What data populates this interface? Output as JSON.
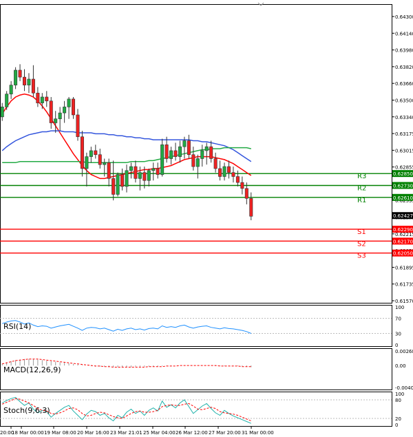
{
  "chart_data": {
    "type": "candlestick",
    "symbol_pair_quote_precision": 5,
    "x_labels": [
      "20:00",
      "18 Mar 00:00",
      "19 Mar 08:00",
      "20 Mar 16:00",
      "23 Mar 21:01",
      "25 Mar 04:00",
      "26 Mar 12:00",
      "27 Mar 20:00",
      "31 Mar 00:00"
    ],
    "price_axis": {
      "ylim": [
        0.6157,
        0.6443
      ],
      "ticks": [
        "0.64300",
        "0.64140",
        "0.63980",
        "0.63820",
        "0.63660",
        "0.63500",
        "0.63340",
        "0.63175",
        "0.63015",
        "0.62855",
        "0.62695",
        "0.62535",
        "0.62375",
        "0.62215",
        "0.62055",
        "0.61895",
        "0.61735",
        "0.61570"
      ],
      "current_price": "0.62427"
    },
    "levels": [
      {
        "name": "R3",
        "value": 0.6285,
        "label": "0.62850",
        "color": "#008000"
      },
      {
        "name": "R2",
        "value": 0.6273,
        "label": "0.62730",
        "color": "#008000"
      },
      {
        "name": "R1",
        "value": 0.6261,
        "label": "0.62610",
        "color": "#008000"
      },
      {
        "name": "S1",
        "value": 0.6229,
        "label": "0.62290",
        "color": "#ff0000"
      },
      {
        "name": "S2",
        "value": 0.6217,
        "label": "0.62170",
        "color": "#ff0000"
      },
      {
        "name": "S3",
        "value": 0.6205,
        "label": "0.62050",
        "color": "#ff0000"
      }
    ],
    "candles": [
      [
        0.6342,
        0.6356,
        0.6338,
        0.6352
      ],
      [
        0.6352,
        0.6368,
        0.6349,
        0.6365
      ],
      [
        0.6365,
        0.6378,
        0.636,
        0.6374
      ],
      [
        0.6374,
        0.6392,
        0.637,
        0.6389
      ],
      [
        0.6389,
        0.6395,
        0.6378,
        0.6382
      ],
      [
        0.6382,
        0.639,
        0.6368,
        0.6374
      ],
      [
        0.6374,
        0.6386,
        0.6366,
        0.638
      ],
      [
        0.638,
        0.6394,
        0.6362,
        0.6366
      ],
      [
        0.6366,
        0.6372,
        0.6352,
        0.6356
      ],
      [
        0.6356,
        0.6366,
        0.635,
        0.6362
      ],
      [
        0.6362,
        0.6368,
        0.6352,
        0.6358
      ],
      [
        0.6358,
        0.6362,
        0.633,
        0.6336
      ],
      [
        0.6336,
        0.6348,
        0.6326,
        0.634
      ],
      [
        0.634,
        0.6352,
        0.6328,
        0.6346
      ],
      [
        0.6346,
        0.6358,
        0.6336,
        0.6352
      ],
      [
        0.6352,
        0.6362,
        0.634,
        0.636
      ],
      [
        0.636,
        0.6362,
        0.634,
        0.6344
      ],
      [
        0.6344,
        0.635,
        0.6318,
        0.6322
      ],
      [
        0.6322,
        0.6328,
        0.6282,
        0.629
      ],
      [
        0.629,
        0.6306,
        0.6272,
        0.6302
      ],
      [
        0.6302,
        0.6312,
        0.6296,
        0.6308
      ],
      [
        0.6308,
        0.6314,
        0.63,
        0.6304
      ],
      [
        0.6304,
        0.631,
        0.629,
        0.6294
      ],
      [
        0.6294,
        0.63,
        0.6282,
        0.6296
      ],
      [
        0.6296,
        0.63,
        0.6272,
        0.628
      ],
      [
        0.628,
        0.6298,
        0.6258,
        0.6264
      ],
      [
        0.6264,
        0.6286,
        0.6262,
        0.6284
      ],
      [
        0.6284,
        0.629,
        0.6268,
        0.6272
      ],
      [
        0.6272,
        0.6294,
        0.6266,
        0.6288
      ],
      [
        0.6288,
        0.6296,
        0.628,
        0.6292
      ],
      [
        0.6292,
        0.6298,
        0.6276,
        0.628
      ],
      [
        0.628,
        0.6292,
        0.6268,
        0.6286
      ],
      [
        0.6286,
        0.6292,
        0.627,
        0.6278
      ],
      [
        0.6278,
        0.629,
        0.6272,
        0.6288
      ],
      [
        0.6288,
        0.6296,
        0.6278,
        0.629
      ],
      [
        0.629,
        0.6296,
        0.628,
        0.6284
      ],
      [
        0.6284,
        0.632,
        0.6282,
        0.6314
      ],
      [
        0.6314,
        0.6322,
        0.6296,
        0.63
      ],
      [
        0.63,
        0.6312,
        0.6294,
        0.6308
      ],
      [
        0.6308,
        0.6316,
        0.6298,
        0.6302
      ],
      [
        0.6302,
        0.6318,
        0.6296,
        0.6312
      ],
      [
        0.6312,
        0.6322,
        0.63,
        0.6318
      ],
      [
        0.6318,
        0.6324,
        0.63,
        0.6304
      ],
      [
        0.6304,
        0.6312,
        0.6288,
        0.6292
      ],
      [
        0.6292,
        0.6304,
        0.628,
        0.63
      ],
      [
        0.63,
        0.6314,
        0.6292,
        0.6308
      ],
      [
        0.6308,
        0.6316,
        0.6294,
        0.6312
      ],
      [
        0.6312,
        0.6318,
        0.6296,
        0.63
      ],
      [
        0.63,
        0.6306,
        0.6286,
        0.629
      ],
      [
        0.629,
        0.6298,
        0.6278,
        0.6282
      ],
      [
        0.6282,
        0.6296,
        0.6278,
        0.6292
      ],
      [
        0.6292,
        0.6298,
        0.628,
        0.6286
      ],
      [
        0.6286,
        0.6292,
        0.6276,
        0.6282
      ],
      [
        0.6282,
        0.6288,
        0.6272,
        0.6276
      ],
      [
        0.6276,
        0.6282,
        0.6264,
        0.627
      ],
      [
        0.627,
        0.6276,
        0.6254,
        0.626
      ],
      [
        0.626,
        0.6266,
        0.6238,
        0.6242
      ]
    ],
    "moving_averages": [
      {
        "name": "MA red",
        "color": "#ff0000",
        "values": [
          0.6345,
          0.6352,
          0.6358,
          0.6362,
          0.6364,
          0.6365,
          0.6364,
          0.6362,
          0.6358,
          0.6353,
          0.6347,
          0.634,
          0.6333,
          0.6326,
          0.6319,
          0.6312,
          0.6305,
          0.6299,
          0.6293,
          0.6288,
          0.6284,
          0.6282,
          0.628,
          0.628,
          0.6281,
          0.6282,
          0.6283,
          0.6284,
          0.6285,
          0.6286,
          0.6287,
          0.6288,
          0.6289,
          0.6289,
          0.629,
          0.629,
          0.6291,
          0.6292,
          0.6293,
          0.6295,
          0.6297,
          0.6299,
          0.63,
          0.6301,
          0.6302,
          0.6302,
          0.6302,
          0.6302,
          0.6301,
          0.63,
          0.6299,
          0.6297,
          0.6295,
          0.6292,
          0.6289,
          0.6286,
          0.6283
        ]
      },
      {
        "name": "MA blue",
        "color": "#3355dd",
        "values": [
          0.6308,
          0.6312,
          0.6315,
          0.6318,
          0.632,
          0.6322,
          0.6324,
          0.6325,
          0.6326,
          0.6327,
          0.6327,
          0.6328,
          0.6328,
          0.6328,
          0.6327,
          0.6327,
          0.6327,
          0.6326,
          0.6326,
          0.6326,
          0.6326,
          0.6325,
          0.6325,
          0.6325,
          0.6324,
          0.6324,
          0.6323,
          0.6323,
          0.6322,
          0.6322,
          0.6321,
          0.6321,
          0.632,
          0.632,
          0.6319,
          0.6319,
          0.6319,
          0.6319,
          0.6319,
          0.6319,
          0.6319,
          0.6319,
          0.6319,
          0.6318,
          0.6318,
          0.6317,
          0.6317,
          0.6316,
          0.6315,
          0.6314,
          0.6313,
          0.6311,
          0.6309,
          0.6306,
          0.6303,
          0.63,
          0.6297
        ]
      },
      {
        "name": "MA green",
        "color": "#22aa44",
        "values": [
          0.6296,
          0.6296,
          0.6296,
          0.6296,
          0.6297,
          0.6297,
          0.6297,
          0.6297,
          0.6297,
          0.6297,
          0.6297,
          0.6297,
          0.6297,
          0.6297,
          0.6297,
          0.6297,
          0.6297,
          0.6297,
          0.6297,
          0.6296,
          0.6296,
          0.6296,
          0.6296,
          0.6296,
          0.6296,
          0.6296,
          0.6296,
          0.6296,
          0.6296,
          0.6297,
          0.6297,
          0.6297,
          0.6297,
          0.6298,
          0.6298,
          0.6299,
          0.63,
          0.6301,
          0.6302,
          0.6303,
          0.6304,
          0.6305,
          0.6306,
          0.6307,
          0.6308,
          0.6309,
          0.6309,
          0.631,
          0.631,
          0.631,
          0.6311,
          0.6311,
          0.6311,
          0.6311,
          0.6311,
          0.6311,
          0.631
        ]
      }
    ],
    "indicators": {
      "rsi": {
        "label": "RSI(14)",
        "ticks": [
          "100",
          "70",
          "30",
          "0"
        ],
        "range": [
          0,
          100
        ],
        "values": [
          56,
          60,
          63,
          64,
          60,
          55,
          58,
          52,
          48,
          50,
          49,
          44,
          47,
          50,
          52,
          54,
          49,
          44,
          38,
          44,
          46,
          45,
          42,
          44,
          40,
          36,
          41,
          38,
          42,
          44,
          40,
          42,
          39,
          43,
          44,
          42,
          50,
          46,
          48,
          46,
          50,
          52,
          47,
          44,
          47,
          49,
          50,
          46,
          44,
          42,
          45,
          43,
          42,
          40,
          38,
          35,
          30
        ]
      },
      "macd": {
        "label": "MACD(12,26,9)",
        "ticks": [
          "0.00268",
          "0.00",
          "-0.00404"
        ],
        "range": [
          -0.00404,
          0.00268
        ],
        "histogram": [
          0.0004,
          0.0006,
          0.0008,
          0.001,
          0.0011,
          0.0012,
          0.0012,
          0.0012,
          0.0011,
          0.001,
          0.0009,
          0.0008,
          0.0007,
          0.0006,
          0.0005,
          0.0004,
          0.0003,
          0.0002,
          0.0001,
          0.0,
          -0.0001,
          -0.0002,
          -0.0002,
          -0.0002,
          -0.0003,
          -0.0003,
          -0.0003,
          -0.0003,
          -0.0003,
          -0.0003,
          -0.0002,
          -0.0002,
          -0.0002,
          -0.0002,
          -0.0002,
          -0.0002,
          -0.0001,
          -0.0001,
          -0.0001,
          0.0,
          0.0,
          0.0,
          0.0,
          0.0,
          0.0,
          0.0,
          0.0,
          0.0,
          -0.0001,
          -0.0001,
          -0.0001,
          -0.0001,
          -0.0001,
          -0.0001,
          -0.0002,
          -0.0002,
          -0.0003
        ],
        "signal": [
          0.0003,
          0.0005,
          0.0007,
          0.0009,
          0.001,
          0.0011,
          0.0012,
          0.0012,
          0.0012,
          0.0011,
          0.001,
          0.0009,
          0.0008,
          0.0007,
          0.0006,
          0.0005,
          0.0004,
          0.0003,
          0.0002,
          0.0001,
          0.0,
          -0.0001,
          -0.0001,
          -0.0002,
          -0.0002,
          -0.0003,
          -0.0003,
          -0.0003,
          -0.0003,
          -0.0003,
          -0.0003,
          -0.0003,
          -0.0003,
          -0.0002,
          -0.0002,
          -0.0002,
          -0.0002,
          -0.0001,
          -0.0001,
          -0.0001,
          0.0,
          0.0,
          0.0,
          0.0,
          0.0,
          0.0,
          0.0,
          0.0,
          0.0,
          -0.0001,
          -0.0001,
          -0.0001,
          -0.0001,
          -0.0001,
          -0.0002,
          -0.0002,
          -0.0002
        ]
      },
      "stoch": {
        "label": "Stoch(9,6,3)",
        "ticks": [
          "100",
          "80",
          "20",
          "0"
        ],
        "range": [
          0,
          100
        ],
        "main": [
          70,
          78,
          84,
          88,
          74,
          62,
          70,
          50,
          38,
          46,
          42,
          24,
          36,
          46,
          56,
          62,
          44,
          30,
          16,
          34,
          46,
          42,
          30,
          36,
          22,
          12,
          30,
          22,
          40,
          50,
          36,
          44,
          30,
          46,
          54,
          44,
          76,
          56,
          64,
          54,
          70,
          80,
          58,
          36,
          48,
          60,
          68,
          52,
          38,
          30,
          46,
          36,
          28,
          22,
          16,
          10,
          4
        ],
        "signal": [
          66,
          72,
          78,
          84,
          82,
          76,
          70,
          62,
          52,
          46,
          44,
          36,
          34,
          38,
          44,
          52,
          54,
          48,
          36,
          28,
          30,
          36,
          40,
          38,
          32,
          26,
          22,
          20,
          28,
          36,
          42,
          44,
          40,
          40,
          42,
          46,
          58,
          62,
          64,
          62,
          62,
          66,
          68,
          60,
          50,
          48,
          52,
          56,
          52,
          42,
          38,
          36,
          34,
          30,
          24,
          18,
          12
        ]
      }
    }
  }
}
